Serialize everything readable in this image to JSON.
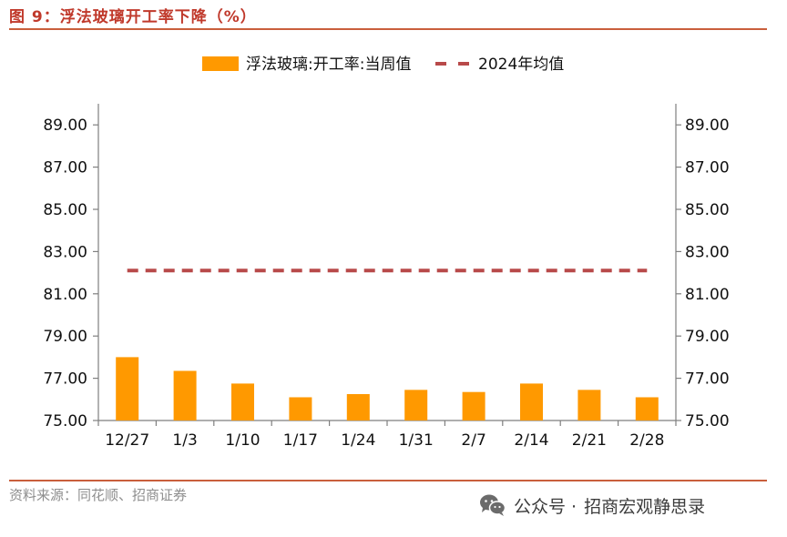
{
  "figure": {
    "title": "图 9：浮法玻璃开工率下降（%）",
    "source": "资料来源：同花顺、招商证券",
    "watermark": {
      "separator": "公众号 · ",
      "name": "招商宏观静思录",
      "icon": "wechat-icon"
    }
  },
  "colors": {
    "title": "#c0392b",
    "rule": "#c95f3c",
    "bar": "#ff9900",
    "avg_line": "#b84a4a",
    "axis": "#7f7f7f"
  },
  "chart_data": {
    "type": "bar",
    "title": "",
    "categories": [
      "12/27",
      "1/3",
      "1/10",
      "1/17",
      "1/24",
      "1/31",
      "2/7",
      "2/14",
      "2/21",
      "2/28"
    ],
    "series": [
      {
        "name": "浮法玻璃:开工率:当周值",
        "type": "bar",
        "axis": "left",
        "values": [
          78.0,
          77.35,
          76.75,
          76.1,
          76.25,
          76.45,
          76.35,
          76.75,
          76.45,
          76.1
        ]
      },
      {
        "name": "2024年均值",
        "type": "line",
        "style": "dashed",
        "axis": "left",
        "values": [
          82.1,
          82.1,
          82.1,
          82.1,
          82.1,
          82.1,
          82.1,
          82.1,
          82.1,
          82.1
        ]
      }
    ],
    "y_left": {
      "min": 75,
      "max": 90,
      "ticks": [
        "89.00",
        "87.00",
        "85.00",
        "83.00",
        "81.00",
        "79.00",
        "77.00",
        "75.00"
      ]
    },
    "y_right": {
      "min": 75,
      "max": 90,
      "ticks": [
        "89.00",
        "87.00",
        "85.00",
        "83.00",
        "81.00",
        "79.00",
        "77.00",
        "75.00"
      ]
    },
    "xlabel": "",
    "ylabel": "",
    "grid": false,
    "legend_position": "top-center"
  }
}
